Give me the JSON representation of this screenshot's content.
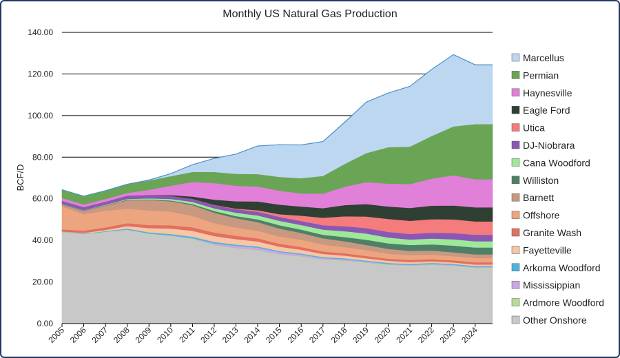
{
  "chart_data": {
    "type": "area",
    "stacked": true,
    "title": "Monthly US Natural Gas Production",
    "xlabel": "",
    "ylabel": "BCF/D",
    "ylim": [
      0,
      140
    ],
    "yticks": [
      "0.00",
      "20.00",
      "40.00",
      "60.00",
      "80.00",
      "100.00",
      "120.00",
      "140.00"
    ],
    "x": [
      "2005",
      "2006",
      "2007",
      "2008",
      "2009",
      "2010",
      "2011",
      "2012",
      "2013",
      "2014",
      "2015",
      "2016",
      "2017",
      "2018",
      "2019",
      "2020",
      "2021",
      "2022",
      "2023",
      "2024"
    ],
    "grid": true,
    "legend_position": "right",
    "series": [
      {
        "name": "Other Onshore",
        "color": "#c8c8c8",
        "values": [
          44,
          43,
          44,
          45,
          43,
          42,
          40.5,
          37.5,
          36,
          35,
          33,
          32,
          30.5,
          30,
          29,
          28,
          27.5,
          28,
          27.5,
          26.5
        ]
      },
      {
        "name": "Ardmore Woodford",
        "color": "#b7dd94",
        "values": [
          0.1,
          0.1,
          0.15,
          0.2,
          0.25,
          0.3,
          0.3,
          0.3,
          0.3,
          0.3,
          0.3,
          0.3,
          0.3,
          0.3,
          0.3,
          0.3,
          0.3,
          0.3,
          0.3,
          0.3
        ]
      },
      {
        "name": "Mississippian",
        "color": "#c9a8e4",
        "values": [
          0,
          0,
          0,
          0,
          0.05,
          0.1,
          0.3,
          0.8,
          1.1,
          1.2,
          1.1,
          0.9,
          0.7,
          0.6,
          0.5,
          0.4,
          0.4,
          0.4,
          0.4,
          0.4
        ]
      },
      {
        "name": "Arkoma Woodford",
        "color": "#4fb3e0",
        "values": [
          0.1,
          0.2,
          0.3,
          0.5,
          0.6,
          0.7,
          0.7,
          0.7,
          0.6,
          0.6,
          0.5,
          0.5,
          0.5,
          0.5,
          0.5,
          0.5,
          0.5,
          0.5,
          0.5,
          0.5
        ]
      },
      {
        "name": "Fayetteville",
        "color": "#f7c6a5",
        "values": [
          0.1,
          0.3,
          0.6,
          1.2,
          2,
          2.6,
          2.8,
          2.8,
          2.6,
          2.4,
          2.1,
          1.8,
          1.5,
          1.3,
          1.1,
          1,
          0.9,
          0.8,
          0.7,
          0.7
        ]
      },
      {
        "name": "Granite Wash",
        "color": "#e07060",
        "values": [
          1,
          1.1,
          1.2,
          1.4,
          1.5,
          1.6,
          1.7,
          1.7,
          1.6,
          1.5,
          1.4,
          1.3,
          1.2,
          1.1,
          1.1,
          1,
          1,
          1,
          1,
          1.1
        ]
      },
      {
        "name": "Offshore",
        "color": "#eda57f",
        "values": [
          11,
          8,
          8,
          7,
          7,
          6.5,
          5.5,
          4.5,
          4,
          3.6,
          3.5,
          3.5,
          3.3,
          3,
          2.8,
          2.4,
          2.3,
          2.1,
          2,
          2
        ]
      },
      {
        "name": "Barnett",
        "color": "#c89880",
        "values": [
          1,
          1.5,
          2.5,
          4,
          5,
          5,
          5.2,
          5,
          4.5,
          4.2,
          3.8,
          3.3,
          3,
          2.8,
          2.5,
          2.3,
          2.1,
          2,
          1.9,
          1.8
        ]
      },
      {
        "name": "Williston",
        "color": "#4e8068",
        "values": [
          0.2,
          0.2,
          0.2,
          0.3,
          0.3,
          0.4,
          0.5,
          0.8,
          1,
          1.3,
          1.6,
          1.6,
          1.7,
          2,
          2.5,
          2.7,
          2.8,
          3,
          3.2,
          3.3
        ]
      },
      {
        "name": "Cana Woodford",
        "color": "#9ee89a",
        "values": [
          0.1,
          0.1,
          0.2,
          0.3,
          0.5,
          0.7,
          1,
          1.3,
          1.6,
          1.9,
          2.1,
          2.2,
          2.5,
          2.8,
          3,
          2.8,
          2.6,
          2.8,
          3,
          3
        ]
      },
      {
        "name": "DJ-Niobrara",
        "color": "#8a58b4",
        "values": [
          1.4,
          1.4,
          1.4,
          1.5,
          1.5,
          1.5,
          1.5,
          1.6,
          1.7,
          1.8,
          1.9,
          1.9,
          2.1,
          2.4,
          2.6,
          2.7,
          2.7,
          2.8,
          3,
          3.1
        ]
      },
      {
        "name": "Utica",
        "color": "#f47c7c",
        "values": [
          0,
          0,
          0,
          0,
          0,
          0,
          0,
          0.1,
          0.3,
          0.7,
          1.3,
          2.6,
          3.6,
          4.8,
          5.6,
          6.2,
          6.3,
          6.5,
          6.6,
          6.4
        ]
      },
      {
        "name": "Eagle Ford",
        "color": "#2f3f33",
        "values": [
          0.05,
          0.05,
          0.05,
          0.1,
          0.1,
          0.4,
          1.1,
          2.5,
          3.5,
          4.2,
          4.6,
          4.4,
          4.6,
          5.4,
          6,
          6,
          6.2,
          6.5,
          6.7,
          6.8
        ]
      },
      {
        "name": "Haynesville",
        "color": "#e080d8",
        "values": [
          1.3,
          1.3,
          1.3,
          1.3,
          2.5,
          4.5,
          7,
          8,
          7.5,
          7.2,
          6.7,
          6.3,
          7,
          8.8,
          10.5,
          11,
          11.5,
          13,
          14.5,
          13.5
        ]
      },
      {
        "name": "Permian",
        "color": "#6aa556",
        "values": [
          4,
          4,
          4,
          4.2,
          4.5,
          4.6,
          4.8,
          5.3,
          5.7,
          6,
          6.6,
          7.3,
          8.5,
          11,
          14,
          17.5,
          18,
          20.5,
          23.5,
          26.5
        ]
      },
      {
        "name": "Marcellus",
        "color": "#bdd7f1",
        "values": [
          0,
          0,
          0,
          0,
          0.2,
          1.2,
          3.5,
          6.5,
          9.5,
          13.5,
          15.5,
          16,
          16.5,
          20,
          24.5,
          26,
          29,
          32,
          34.5,
          28.5
        ]
      }
    ]
  }
}
